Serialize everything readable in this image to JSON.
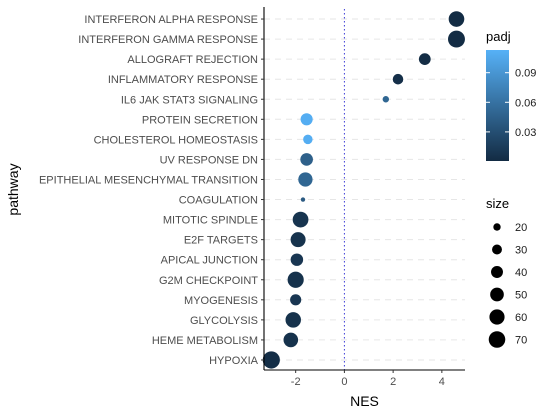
{
  "chart_data": {
    "type": "scatter",
    "xlabel": "NES",
    "ylabel": "pathway",
    "xlim": [
      -3.3,
      4.95
    ],
    "xticks": [
      -2,
      0,
      2,
      4
    ],
    "reference_line_x": 0,
    "grid": "horizontal dashed",
    "legend_placement": "right",
    "colors": {
      "low": "#132B43",
      "high": "#56B1F7",
      "reference_line": "#3b3bd6",
      "grid": "#e6e6e6"
    },
    "color_legend": {
      "title": "padj",
      "range": [
        0.0005,
        0.113
      ],
      "ticks": [
        0.03,
        0.06,
        0.09
      ],
      "tick_labels": [
        "0.03",
        "0.06",
        "0.09"
      ]
    },
    "size_legend": {
      "title": "size",
      "range": [
        12,
        75
      ],
      "values": [
        20,
        30,
        40,
        50,
        60,
        70
      ],
      "labels": [
        "20",
        "30",
        "40",
        "50",
        "60",
        "70"
      ]
    },
    "points": [
      {
        "pathway": "INTERFERON ALPHA RESPONSE",
        "NES": 4.6,
        "padj": 0.001,
        "size": 63
      },
      {
        "pathway": "INTERFERON GAMMA RESPONSE",
        "NES": 4.6,
        "padj": 0.001,
        "size": 73
      },
      {
        "pathway": "ALLOGRAFT REJECTION",
        "NES": 3.3,
        "padj": 0.002,
        "size": 39
      },
      {
        "pathway": "INFLAMMATORY RESPONSE",
        "NES": 2.2,
        "padj": 0.004,
        "size": 33
      },
      {
        "pathway": "IL6 JAK STAT3 SIGNALING",
        "NES": 1.7,
        "padj": 0.05,
        "size": 17
      },
      {
        "pathway": "PROTEIN SECRETION",
        "NES": -1.55,
        "padj": 0.11,
        "size": 41
      },
      {
        "pathway": "CHOLESTEROL HOMEOSTASIS",
        "NES": -1.5,
        "padj": 0.11,
        "size": 28
      },
      {
        "pathway": "UV RESPONSE DN",
        "NES": -1.55,
        "padj": 0.045,
        "size": 44
      },
      {
        "pathway": "EPITHELIAL MESENCHYMAL TRANSITION",
        "NES": -1.6,
        "padj": 0.05,
        "size": 54
      },
      {
        "pathway": "COAGULATION",
        "NES": -1.7,
        "padj": 0.04,
        "size": 12
      },
      {
        "pathway": "MITOTIC SPINDLE",
        "NES": -1.8,
        "padj": 0.008,
        "size": 64
      },
      {
        "pathway": "E2F TARGETS",
        "NES": -1.9,
        "padj": 0.007,
        "size": 59
      },
      {
        "pathway": "APICAL JUNCTION",
        "NES": -1.95,
        "padj": 0.01,
        "size": 43
      },
      {
        "pathway": "G2M CHECKPOINT",
        "NES": -2.0,
        "padj": 0.006,
        "size": 67
      },
      {
        "pathway": "MYOGENESIS",
        "NES": -2.0,
        "padj": 0.01,
        "size": 36
      },
      {
        "pathway": "GLYCOLYSIS",
        "NES": -2.1,
        "padj": 0.006,
        "size": 62
      },
      {
        "pathway": "HEME METABOLISM",
        "NES": -2.2,
        "padj": 0.006,
        "size": 56
      },
      {
        "pathway": "HYPOXIA",
        "NES": -3.0,
        "padj": 0.003,
        "size": 75
      }
    ]
  }
}
